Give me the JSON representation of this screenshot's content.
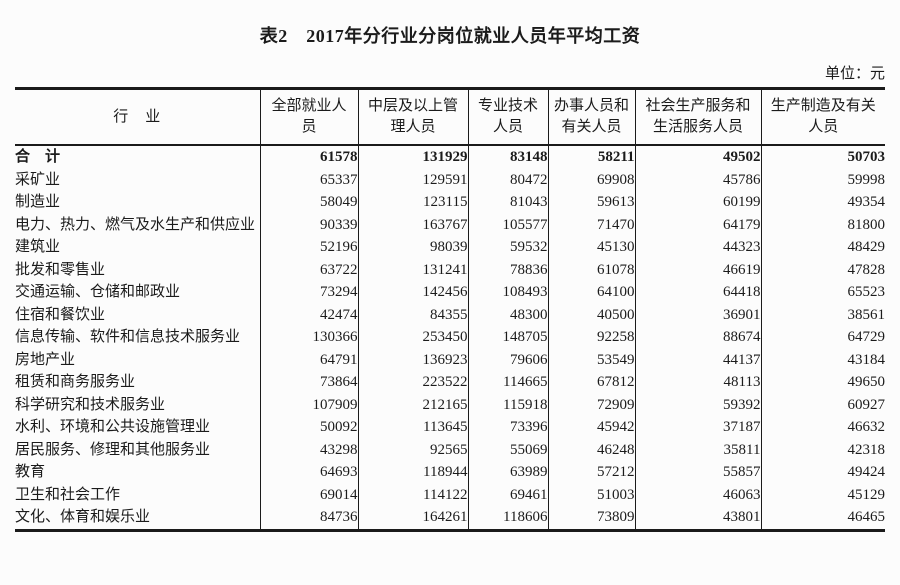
{
  "page": {
    "title": "表2　2017年分行业分岗位就业人员年平均工资",
    "unit_note": "单位：元"
  },
  "colors": {
    "background": "#fcfcfc",
    "border": "#1b1b1b",
    "text": "#1b1b1b"
  },
  "table": {
    "columns": [
      "行　业",
      "全部就业人员",
      "中层及以上管理人员",
      "专业技术人员",
      "办事人员和有关人员",
      "社会生产服务和生活服务人员",
      "生产制造及有关人员"
    ],
    "rows": [
      {
        "label": "合　计",
        "bold": true,
        "values": [
          61578,
          131929,
          83148,
          58211,
          49502,
          50703
        ]
      },
      {
        "label": "采矿业",
        "bold": false,
        "values": [
          65337,
          129591,
          80472,
          69908,
          45786,
          59998
        ]
      },
      {
        "label": "制造业",
        "bold": false,
        "values": [
          58049,
          123115,
          81043,
          59613,
          60199,
          49354
        ]
      },
      {
        "label": "电力、热力、燃气及水生产和供应业",
        "bold": false,
        "values": [
          90339,
          163767,
          105577,
          71470,
          64179,
          81800
        ]
      },
      {
        "label": "建筑业",
        "bold": false,
        "values": [
          52196,
          98039,
          59532,
          45130,
          44323,
          48429
        ]
      },
      {
        "label": "批发和零售业",
        "bold": false,
        "values": [
          63722,
          131241,
          78836,
          61078,
          46619,
          47828
        ]
      },
      {
        "label": "交通运输、仓储和邮政业",
        "bold": false,
        "values": [
          73294,
          142456,
          108493,
          64100,
          64418,
          65523
        ]
      },
      {
        "label": "住宿和餐饮业",
        "bold": false,
        "values": [
          42474,
          84355,
          48300,
          40500,
          36901,
          38561
        ]
      },
      {
        "label": "信息传输、软件和信息技术服务业",
        "bold": false,
        "values": [
          130366,
          253450,
          148705,
          92258,
          88674,
          64729
        ]
      },
      {
        "label": "房地产业",
        "bold": false,
        "values": [
          64791,
          136923,
          79606,
          53549,
          44137,
          43184
        ]
      },
      {
        "label": "租赁和商务服务业",
        "bold": false,
        "values": [
          73864,
          223522,
          114665,
          67812,
          48113,
          49650
        ]
      },
      {
        "label": "科学研究和技术服务业",
        "bold": false,
        "values": [
          107909,
          212165,
          115918,
          72909,
          59392,
          60927
        ]
      },
      {
        "label": "水利、环境和公共设施管理业",
        "bold": false,
        "values": [
          50092,
          113645,
          73396,
          45942,
          37187,
          46632
        ]
      },
      {
        "label": "居民服务、修理和其他服务业",
        "bold": false,
        "values": [
          43298,
          92565,
          55069,
          46248,
          35811,
          42318
        ]
      },
      {
        "label": "教育",
        "bold": false,
        "values": [
          64693,
          118944,
          63989,
          57212,
          55857,
          49424
        ]
      },
      {
        "label": "卫生和社会工作",
        "bold": false,
        "values": [
          69014,
          114122,
          69461,
          51003,
          46063,
          45129
        ]
      },
      {
        "label": "文化、体育和娱乐业",
        "bold": false,
        "values": [
          84736,
          164261,
          118606,
          73809,
          43801,
          46465
        ]
      }
    ]
  }
}
